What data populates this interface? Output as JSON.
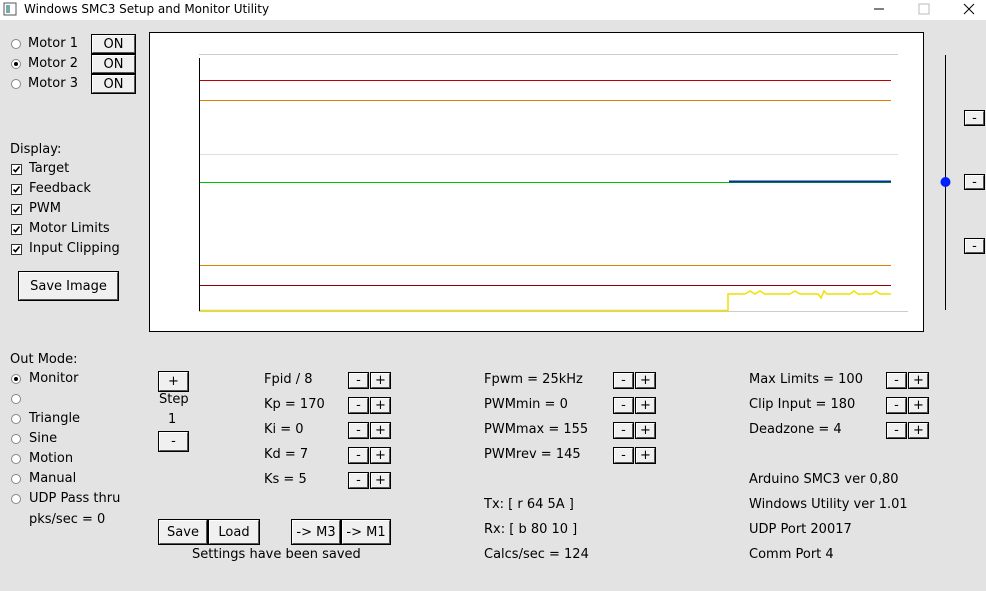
{
  "window": {
    "title": "Windows SMC3 Setup and Monitor Utility"
  },
  "on_button": "ON",
  "minus": "-",
  "plus": "+",
  "motors": {
    "labels": [
      "Motor 1",
      "Motor 2",
      "Motor 3"
    ],
    "selected": 1
  },
  "display": {
    "title": "Display:",
    "options": [
      {
        "label": "Target",
        "checked": true
      },
      {
        "label": "Feedback",
        "checked": true
      },
      {
        "label": "PWM",
        "checked": true
      },
      {
        "label": "Motor Limits",
        "checked": true
      },
      {
        "label": "Input Clipping",
        "checked": true
      }
    ]
  },
  "save_image": "Save Image",
  "out_mode": {
    "title": "Out Mode:",
    "options": [
      "Monitor",
      null,
      "Triangle",
      "Sine",
      "Motion",
      "Manual",
      "UDP Pass thru"
    ],
    "selected": 0,
    "rate": "pks/sec = 0"
  },
  "step": {
    "label": "Step",
    "value": "1"
  },
  "parameters": [
    [
      "Fpid / 8",
      "Kp = 170",
      "Ki = 0",
      "Kd = 7",
      "Ks = 5"
    ],
    [
      "Fpwm = 25kHz",
      "PWMmin = 0",
      "PWMmax = 155",
      "PWMrev = 145"
    ],
    [
      "Max Limits = 100",
      "Clip Input = 180",
      "Deadzone = 4"
    ]
  ],
  "comms": [
    "Tx: [ r 64 5A ]",
    "Rx: [ b 80 10 ]",
    "Calcs/sec = 124"
  ],
  "info": [
    "Arduino SMC3 ver 0,80",
    "Windows Utility ver 1.01",
    "UDP Port 20017",
    "Comm Port 4"
  ],
  "buttons": [
    "Save",
    "Load",
    "-> M3",
    "-> M1"
  ],
  "status": "Settings have been saved"
}
